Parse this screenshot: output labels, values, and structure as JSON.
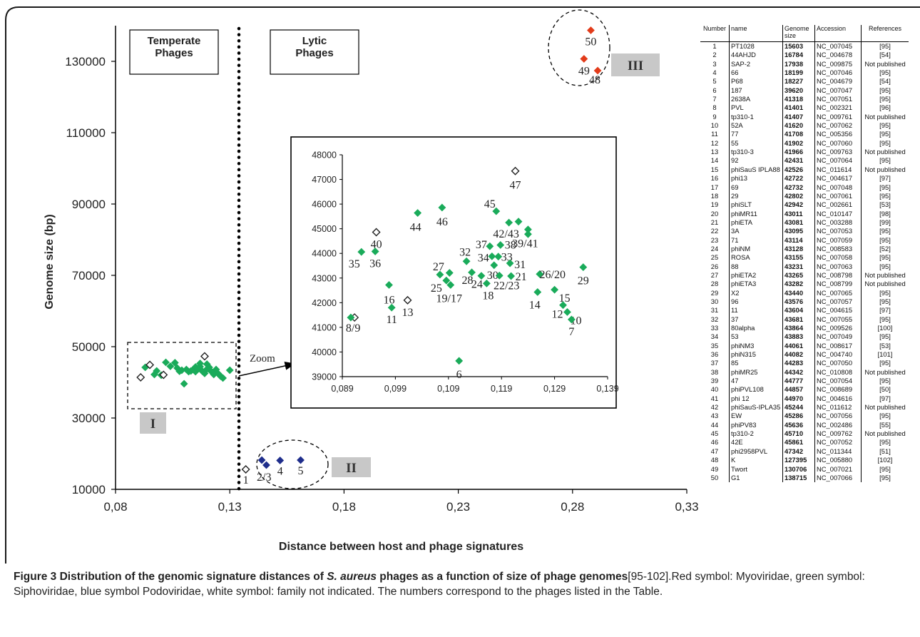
{
  "chart_data": {
    "type": "scatter",
    "main": {
      "xlabel": "Distance between host and phage signatures",
      "ylabel": "Genome size (bp)",
      "xlim": [
        0.08,
        0.33
      ],
      "ylim": [
        10000,
        140000
      ],
      "x_ticks": [
        "0,08",
        "0,13",
        "0,18",
        "0,23",
        "0,28",
        "0,33"
      ],
      "y_ticks": [
        "10000",
        "30000",
        "50000",
        "70000",
        "90000",
        "110000",
        "130000"
      ],
      "divider_x": 0.134,
      "region_labels": {
        "temperate": "Temperate\nPhages",
        "lytic": "Lytic\nPhages"
      },
      "cluster_labels": [
        "I",
        "II",
        "III"
      ],
      "zoom_label": "Zoom",
      "series": [
        {
          "name": "Siphoviridae",
          "color": "#1aab5a",
          "points": [
            [
              0.093,
              44200
            ],
            [
              0.097,
              42200
            ],
            [
              0.098,
              43200
            ],
            [
              0.1,
              42000
            ],
            [
              0.102,
              45600
            ],
            [
              0.104,
              44500
            ],
            [
              0.106,
              45500
            ],
            [
              0.107,
              44000
            ],
            [
              0.108,
              43100
            ],
            [
              0.109,
              43400
            ],
            [
              0.11,
              39600
            ],
            [
              0.111,
              43600
            ],
            [
              0.112,
              43000
            ],
            [
              0.113,
              43200
            ],
            [
              0.114,
              43600
            ],
            [
              0.115,
              44300
            ],
            [
              0.115,
              43000
            ],
            [
              0.116,
              43800
            ],
            [
              0.117,
              44400
            ],
            [
              0.117,
              45300
            ],
            [
              0.118,
              43100
            ],
            [
              0.119,
              42500
            ],
            [
              0.12,
              43700
            ],
            [
              0.12,
              45100
            ],
            [
              0.121,
              44200
            ],
            [
              0.122,
              43000
            ],
            [
              0.123,
              42200
            ],
            [
              0.124,
              43600
            ],
            [
              0.125,
              42400
            ],
            [
              0.126,
              41700
            ],
            [
              0.127,
              41200
            ],
            [
              0.13,
              43400
            ]
          ]
        },
        {
          "name": "Podoviridae",
          "color": "#1f2e8c",
          "points": [
            [
              0.144,
              18200
            ],
            [
              0.146,
              16800
            ],
            [
              0.152,
              18100
            ],
            [
              0.161,
              18200
            ]
          ]
        },
        {
          "name": "Myoviridae",
          "color": "#e23b1a",
          "points": [
            [
              0.288,
              138700
            ],
            [
              0.285,
              130700
            ],
            [
              0.291,
              127400
            ]
          ]
        },
        {
          "name": "family not indicated",
          "color": "#ffffff",
          "points": [
            [
              0.091,
              41400
            ],
            [
              0.095,
              44900
            ],
            [
              0.101,
              42100
            ],
            [
              0.119,
              47300
            ],
            [
              0.137,
              15600
            ]
          ]
        }
      ],
      "point_labels": [
        {
          "text": "1",
          "x": 0.137,
          "y": 15600
        },
        {
          "text": "2/3",
          "x": 0.145,
          "y": 16800
        },
        {
          "text": "4",
          "x": 0.152,
          "y": 18100
        },
        {
          "text": "5",
          "x": 0.161,
          "y": 18200
        },
        {
          "text": "50",
          "x": 0.288,
          "y": 138700
        },
        {
          "text": "49",
          "x": 0.285,
          "y": 130700
        },
        {
          "text": "48",
          "x": 0.291,
          "y": 127400
        }
      ]
    },
    "zoom": {
      "xlim": [
        0.089,
        0.139
      ],
      "ylim": [
        39000,
        48000
      ],
      "x_ticks": [
        "0,089",
        "0,099",
        "0,109",
        "0,119",
        "0,129",
        "0,139"
      ],
      "y_ticks": [
        "39000",
        "40000",
        "41000",
        "42000",
        "43000",
        "44000",
        "45000",
        "46000",
        "47000",
        "48000"
      ],
      "points": [
        {
          "label": "8/9",
          "x": 0.0913,
          "y": 41400,
          "family": "white"
        },
        {
          "label": "",
          "x": 0.0906,
          "y": 41400,
          "family": "green"
        },
        {
          "label": "40",
          "x": 0.0954,
          "y": 44860,
          "family": "white"
        },
        {
          "label": "35",
          "x": 0.0926,
          "y": 44060,
          "family": "green"
        },
        {
          "label": "36",
          "x": 0.0952,
          "y": 44080,
          "family": "green"
        },
        {
          "label": "16",
          "x": 0.0978,
          "y": 42720,
          "family": "green"
        },
        {
          "label": "11",
          "x": 0.0983,
          "y": 41800,
          "family": "green"
        },
        {
          "label": "13",
          "x": 0.1013,
          "y": 42100,
          "family": "white"
        },
        {
          "label": "44",
          "x": 0.1032,
          "y": 45640,
          "family": "green"
        },
        {
          "label": "46",
          "x": 0.1078,
          "y": 45860,
          "family": "green"
        },
        {
          "label": "27",
          "x": 0.1074,
          "y": 43140,
          "family": "green"
        },
        {
          "label": "25",
          "x": 0.1086,
          "y": 42900,
          "family": "green"
        },
        {
          "label": "19/17",
          "x": 0.1094,
          "y": 42720,
          "family": "green"
        },
        {
          "label": "",
          "x": 0.1092,
          "y": 43210,
          "family": "green"
        },
        {
          "label": "32",
          "x": 0.1124,
          "y": 43680,
          "family": "green"
        },
        {
          "label": "28",
          "x": 0.1134,
          "y": 43230,
          "family": "green"
        },
        {
          "label": "24",
          "x": 0.1152,
          "y": 43090,
          "family": "green"
        },
        {
          "label": "18",
          "x": 0.1162,
          "y": 42780,
          "family": "green"
        },
        {
          "label": "6",
          "x": 0.111,
          "y": 39640,
          "family": "green"
        },
        {
          "label": "37",
          "x": 0.1168,
          "y": 44290,
          "family": "green"
        },
        {
          "label": "34",
          "x": 0.1172,
          "y": 43880,
          "family": "green"
        },
        {
          "label": "30",
          "x": 0.1176,
          "y": 43520,
          "family": "green"
        },
        {
          "label": "33",
          "x": 0.1184,
          "y": 43870,
          "family": "green"
        },
        {
          "label": "38",
          "x": 0.1188,
          "y": 44340,
          "family": "green"
        },
        {
          "label": "22/23",
          "x": 0.1186,
          "y": 43100,
          "family": "green"
        },
        {
          "label": "31",
          "x": 0.1206,
          "y": 43600,
          "family": "green"
        },
        {
          "label": "21",
          "x": 0.1208,
          "y": 43080,
          "family": "green"
        },
        {
          "label": "45",
          "x": 0.118,
          "y": 45710,
          "family": "green"
        },
        {
          "label": "42/43",
          "x": 0.1204,
          "y": 45250,
          "family": "green"
        },
        {
          "label": "",
          "x": 0.1222,
          "y": 45290,
          "family": "green"
        },
        {
          "label": "47",
          "x": 0.1216,
          "y": 47342,
          "family": "white"
        },
        {
          "label": "39/41",
          "x": 0.124,
          "y": 44970,
          "family": "green"
        },
        {
          "label": "",
          "x": 0.124,
          "y": 44780,
          "family": "green"
        },
        {
          "label": "26/20",
          "x": 0.1262,
          "y": 43160,
          "family": "green"
        },
        {
          "label": "14",
          "x": 0.1258,
          "y": 42431,
          "family": "green"
        },
        {
          "label": "15",
          "x": 0.129,
          "y": 42526,
          "family": "green"
        },
        {
          "label": "12",
          "x": 0.1306,
          "y": 41902,
          "family": "green"
        },
        {
          "label": "10",
          "x": 0.1314,
          "y": 41620,
          "family": "green"
        },
        {
          "label": "7",
          "x": 0.1322,
          "y": 41318,
          "family": "green"
        },
        {
          "label": "29",
          "x": 0.1344,
          "y": 43440,
          "family": "green"
        }
      ]
    }
  },
  "table": {
    "headers": [
      "Number",
      "name",
      "Genome size",
      "Accession",
      "References"
    ],
    "rows": [
      [
        "1",
        "PT1028",
        "15603",
        "NC_007045",
        "[95]"
      ],
      [
        "2",
        "44AHJD",
        "16784",
        "NC_004678",
        "[54]"
      ],
      [
        "3",
        "SAP-2",
        "17938",
        "NC_009875",
        "Not published"
      ],
      [
        "4",
        "66",
        "18199",
        "NC_007046",
        "[95]"
      ],
      [
        "5",
        "P68",
        "18227",
        "NC_004679",
        "[54]"
      ],
      [
        "6",
        "187",
        "39620",
        "NC_007047",
        "[95]"
      ],
      [
        "7",
        "2638A",
        "41318",
        "NC_007051",
        "[95]"
      ],
      [
        "8",
        "PVL",
        "41401",
        "NC_002321",
        "[96]"
      ],
      [
        "9",
        "tp310-1",
        "41407",
        "NC_009761",
        "Not published"
      ],
      [
        "10",
        "52A",
        "41620",
        "NC_007062",
        "[95]"
      ],
      [
        "11",
        "77",
        "41708",
        "NC_005356",
        "[95]"
      ],
      [
        "12",
        "55",
        "41902",
        "NC_007060",
        "[95]"
      ],
      [
        "13",
        "tp310-3",
        "41966",
        "NC_009763",
        "Not published"
      ],
      [
        "14",
        "92",
        "42431",
        "NC_007064",
        "[95]"
      ],
      [
        "15",
        "phiSauS IPLA88",
        "42526",
        "NC_011614",
        "Not published"
      ],
      [
        "16",
        "phi13",
        "42722",
        "NC_004617",
        "[97]"
      ],
      [
        "17",
        "69",
        "42732",
        "NC_007048",
        "[95]"
      ],
      [
        "18",
        "29",
        "42802",
        "NC_007061",
        "[95]"
      ],
      [
        "19",
        "phiSLT",
        "42942",
        "NC_002661",
        "[53]"
      ],
      [
        "20",
        "phiMR11",
        "43011",
        "NC_010147",
        "[98]"
      ],
      [
        "21",
        "phiETA",
        "43081",
        "NC_003288",
        "[99]"
      ],
      [
        "22",
        "3A",
        "43095",
        "NC_007053",
        "[95]"
      ],
      [
        "23",
        "71",
        "43114",
        "NC_007059",
        "[95]"
      ],
      [
        "24",
        "phiNM",
        "43128",
        "NC_008583",
        "[52]"
      ],
      [
        "25",
        "ROSA",
        "43155",
        "NC_007058",
        "[95]"
      ],
      [
        "26",
        "88",
        "43231",
        "NC_007063",
        "[95]"
      ],
      [
        "27",
        "phiETA2",
        "43265",
        "NC_008798",
        "Not published"
      ],
      [
        "28",
        "phiETA3",
        "43282",
        "NC_008799",
        "Not published"
      ],
      [
        "29",
        "X2",
        "43440",
        "NC_007065",
        "[95]"
      ],
      [
        "30",
        "96",
        "43576",
        "NC_007057",
        "[95]"
      ],
      [
        "31",
        "11",
        "43604",
        "NC_004615",
        "[97]"
      ],
      [
        "32",
        "37",
        "43681",
        "NC_007055",
        "[95]"
      ],
      [
        "33",
        "80alpha",
        "43864",
        "NC_009526",
        "[100]"
      ],
      [
        "34",
        "53",
        "43883",
        "NC_007049",
        "[95]"
      ],
      [
        "35",
        "phiNM3",
        "44061",
        "NC_008617",
        "[53]"
      ],
      [
        "36",
        "phiN315",
        "44082",
        "NC_004740",
        "[101]"
      ],
      [
        "37",
        "85",
        "44283",
        "NC_007050",
        "[95]"
      ],
      [
        "38",
        "phiMR25",
        "44342",
        "NC_010808",
        "Not published"
      ],
      [
        "39",
        "47",
        "44777",
        "NC_007054",
        "[95]"
      ],
      [
        "40",
        "phiPVL108",
        "44857",
        "NC_008689",
        "[50]"
      ],
      [
        "41",
        "phi 12",
        "44970",
        "NC_004616",
        "[97]"
      ],
      [
        "42",
        "phiSauS-IPLA35",
        "45244",
        "NC_011612",
        "Not published"
      ],
      [
        "43",
        "EW",
        "45286",
        "NC_007056",
        "[95]"
      ],
      [
        "44",
        "phiPV83",
        "45636",
        "NC_002486",
        "[55]"
      ],
      [
        "45",
        "tp310-2",
        "45710",
        "NC_009762",
        "Not published"
      ],
      [
        "46",
        "42E",
        "45861",
        "NC_007052",
        "[95]"
      ],
      [
        "47",
        "phi2958PVL",
        "47342",
        "NC_011344",
        "[51]"
      ],
      [
        "48",
        "K",
        "127395",
        "NC_005880",
        "[102]"
      ],
      [
        "49",
        "Twort",
        "130706",
        "NC_007021",
        "[95]"
      ],
      [
        "50",
        "G1",
        "138715",
        "NC_007066",
        "[95]"
      ]
    ]
  },
  "caption": {
    "bold": "Figure 3 Distribution of the genomic signature distances of ",
    "italic": "S. aureus",
    "bold2": " phages as a function of size of phage genomes",
    "rest": "[95-102].Red symbol: Myoviridae, green symbol: Siphoviridae, blue symbol Podoviridae, white symbol: family not indicated. The numbers correspond to the phages listed in the Table."
  }
}
